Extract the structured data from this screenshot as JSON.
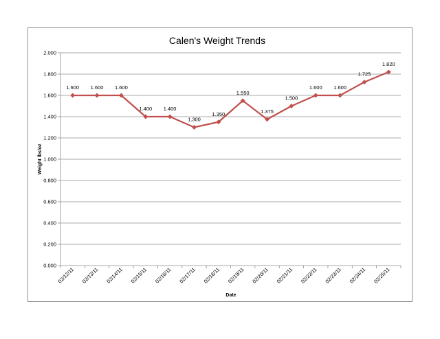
{
  "chart_data": {
    "type": "line",
    "title": "Calen's Weight Trends",
    "xlabel": "Date",
    "ylabel": "Weight lbs/oz",
    "categories": [
      "02/12/11",
      "02/13/11",
      "02/14/11",
      "02/15/11",
      "02/16/11",
      "02/17/11",
      "02/18/11",
      "02/19/11",
      "02/20/11",
      "02/21/11",
      "02/22/11",
      "02/23/11",
      "02/24/11",
      "02/25/11"
    ],
    "series": [
      {
        "values": [
          1.6,
          1.6,
          1.6,
          1.4,
          1.4,
          1.3,
          1.35,
          1.55,
          1.375,
          1.5,
          1.6,
          1.6,
          1.725,
          1.82
        ],
        "labels": [
          "1.600",
          "1.600",
          "1.600",
          "1.400",
          "1.400",
          "1.300",
          "1.350",
          "1.550",
          "1.375",
          "1.500",
          "1.600",
          "1.600",
          "1.725",
          "1.820"
        ],
        "color": "#c0504d"
      }
    ],
    "ylim": [
      0,
      2.0
    ],
    "yticks": [
      "0.000",
      "0.200",
      "0.400",
      "0.600",
      "0.800",
      "1.000",
      "1.200",
      "1.400",
      "1.600",
      "1.800",
      "2.000"
    ],
    "grid": true,
    "legend": "none"
  }
}
